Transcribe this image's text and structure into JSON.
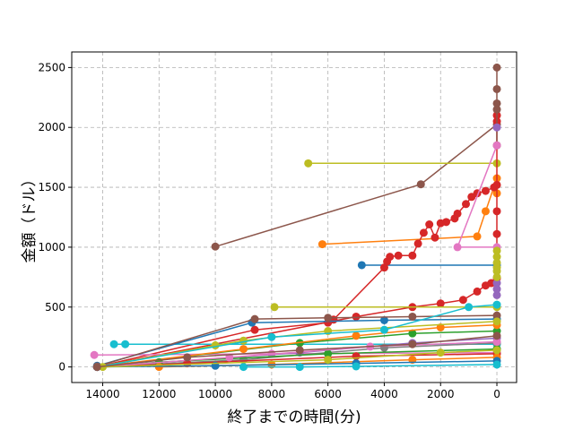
{
  "chart_data": {
    "type": "line",
    "title": "",
    "xlabel": "終了までの時間(分)",
    "ylabel": "金額（ドル）",
    "x_reversed": true,
    "xlim": [
      15100,
      -700
    ],
    "ylim": [
      -130,
      2630
    ],
    "xticks": [
      14000,
      12000,
      10000,
      8000,
      6000,
      4000,
      2000,
      0
    ],
    "yticks": [
      0,
      500,
      1000,
      1500,
      2000,
      2500
    ],
    "grid": true,
    "grid_style": "dashed",
    "marker": "circle",
    "series": [
      {
        "color": "#8c564b",
        "points": [
          [
            10000,
            1005
          ],
          [
            2700,
            1525
          ],
          [
            0,
            2025
          ]
        ]
      },
      {
        "color": "#bcbd22",
        "points": [
          [
            6700,
            1700
          ],
          [
            0,
            1700
          ]
        ]
      },
      {
        "color": "#ff7f0e",
        "points": [
          [
            6200,
            1025
          ],
          [
            700,
            1090
          ],
          [
            400,
            1300
          ],
          [
            0,
            1575
          ],
          [
            0,
            1450
          ]
        ]
      },
      {
        "color": "#1f77b4",
        "points": [
          [
            4800,
            850
          ],
          [
            0,
            850
          ]
        ]
      },
      {
        "color": "#d62728",
        "points": [
          [
            14200,
            0
          ],
          [
            8600,
            310
          ],
          [
            6000,
            370
          ],
          [
            5800,
            395
          ],
          [
            4000,
            830
          ],
          [
            3900,
            880
          ],
          [
            3800,
            920
          ],
          [
            3500,
            930
          ],
          [
            3000,
            930
          ],
          [
            2800,
            1030
          ],
          [
            2600,
            1120
          ],
          [
            2400,
            1190
          ],
          [
            2200,
            1080
          ],
          [
            2000,
            1200
          ],
          [
            1800,
            1210
          ],
          [
            1500,
            1240
          ],
          [
            1400,
            1280
          ],
          [
            1100,
            1360
          ],
          [
            900,
            1420
          ],
          [
            700,
            1450
          ],
          [
            400,
            1470
          ],
          [
            100,
            1500
          ],
          [
            0,
            1520
          ]
        ]
      },
      {
        "color": "#d62728",
        "points": [
          [
            14200,
            0
          ],
          [
            5000,
            420
          ],
          [
            3000,
            500
          ],
          [
            2000,
            530
          ],
          [
            1200,
            560
          ],
          [
            700,
            630
          ],
          [
            400,
            680
          ],
          [
            200,
            700
          ],
          [
            0,
            740
          ],
          [
            0,
            1110
          ],
          [
            0,
            1300
          ],
          [
            0,
            2050
          ],
          [
            0,
            2100
          ]
        ]
      },
      {
        "color": "#8c564b",
        "points": [
          [
            0,
            2500
          ],
          [
            0,
            2320
          ],
          [
            0,
            2200
          ],
          [
            0,
            2150
          ],
          [
            0,
            1850
          ]
        ]
      },
      {
        "color": "#9467bd",
        "points": [
          [
            0,
            2000
          ]
        ]
      },
      {
        "color": "#e377c2",
        "points": [
          [
            0,
            1850
          ],
          [
            1400,
            1000
          ],
          [
            0,
            1000
          ]
        ]
      },
      {
        "color": "#bcbd22",
        "points": [
          [
            7900,
            500
          ],
          [
            0,
            500
          ]
        ]
      },
      {
        "color": "#17becf",
        "points": [
          [
            13600,
            190
          ],
          [
            13200,
            190
          ],
          [
            0,
            190
          ]
        ]
      },
      {
        "color": "#e377c2",
        "points": [
          [
            14300,
            100
          ],
          [
            8000,
            110
          ],
          [
            0,
            120
          ]
        ]
      },
      {
        "color": "#1f77b4",
        "points": [
          [
            14200,
            10
          ],
          [
            8700,
            370
          ],
          [
            4000,
            390
          ],
          [
            0,
            400
          ]
        ]
      },
      {
        "color": "#8c564b",
        "points": [
          [
            14200,
            5
          ],
          [
            8600,
            400
          ],
          [
            6000,
            410
          ],
          [
            3000,
            420
          ],
          [
            0,
            430
          ]
        ]
      },
      {
        "color": "#2ca02c",
        "points": [
          [
            14200,
            0
          ],
          [
            7000,
            200
          ],
          [
            3000,
            280
          ],
          [
            0,
            300
          ]
        ]
      },
      {
        "color": "#ff7f0e",
        "points": [
          [
            14200,
            0
          ],
          [
            9000,
            150
          ],
          [
            5000,
            260
          ],
          [
            2000,
            330
          ],
          [
            0,
            350
          ]
        ]
      },
      {
        "color": "#bcbd22",
        "points": [
          [
            14200,
            0
          ],
          [
            10000,
            180
          ],
          [
            9000,
            220
          ],
          [
            6000,
            300
          ],
          [
            0,
            380
          ]
        ]
      },
      {
        "color": "#17becf",
        "points": [
          [
            14200,
            0
          ],
          [
            8000,
            250
          ],
          [
            4000,
            310
          ],
          [
            1000,
            500
          ],
          [
            0,
            520
          ]
        ]
      },
      {
        "color": "#9467bd",
        "points": [
          [
            14200,
            0
          ],
          [
            7000,
            120
          ],
          [
            3000,
            200
          ],
          [
            0,
            240
          ]
        ]
      },
      {
        "color": "#7f7f7f",
        "points": [
          [
            14200,
            0
          ],
          [
            9000,
            60
          ],
          [
            4000,
            160
          ],
          [
            0,
            200
          ]
        ]
      },
      {
        "color": "#2ca02c",
        "points": [
          [
            14200,
            0
          ],
          [
            12000,
            40
          ],
          [
            6000,
            110
          ],
          [
            0,
            150
          ]
        ]
      },
      {
        "color": "#d62728",
        "points": [
          [
            14200,
            0
          ],
          [
            11000,
            30
          ],
          [
            5000,
            90
          ],
          [
            0,
            110
          ]
        ]
      },
      {
        "color": "#e377c2",
        "points": [
          [
            14200,
            0
          ],
          [
            9500,
            80
          ],
          [
            4500,
            170
          ],
          [
            0,
            210
          ]
        ]
      },
      {
        "color": "#ff7f0e",
        "points": [
          [
            12000,
            0
          ],
          [
            8000,
            20
          ],
          [
            3000,
            60
          ],
          [
            0,
            80
          ]
        ]
      },
      {
        "color": "#1f77b4",
        "points": [
          [
            14200,
            0
          ],
          [
            10000,
            10
          ],
          [
            5000,
            30
          ],
          [
            0,
            50
          ]
        ]
      },
      {
        "color": "#17becf",
        "points": [
          [
            9000,
            0
          ],
          [
            7000,
            0
          ],
          [
            5000,
            5
          ],
          [
            0,
            20
          ]
        ]
      },
      {
        "color": "#bcbd22",
        "points": [
          [
            14000,
            0
          ],
          [
            6000,
            60
          ],
          [
            2000,
            120
          ],
          [
            0,
            140
          ]
        ]
      },
      {
        "color": "#8c564b",
        "points": [
          [
            14200,
            0
          ],
          [
            11000,
            80
          ],
          [
            7000,
            140
          ],
          [
            3000,
            190
          ],
          [
            0,
            260
          ]
        ]
      },
      {
        "color": "#9467bd",
        "points": [
          [
            0,
            600
          ],
          [
            0,
            650
          ],
          [
            0,
            700
          ]
        ]
      },
      {
        "color": "#bcbd22",
        "points": [
          [
            0,
            750
          ],
          [
            0,
            800
          ],
          [
            0,
            830
          ],
          [
            0,
            870
          ],
          [
            0,
            920
          ],
          [
            0,
            970
          ]
        ]
      }
    ]
  }
}
